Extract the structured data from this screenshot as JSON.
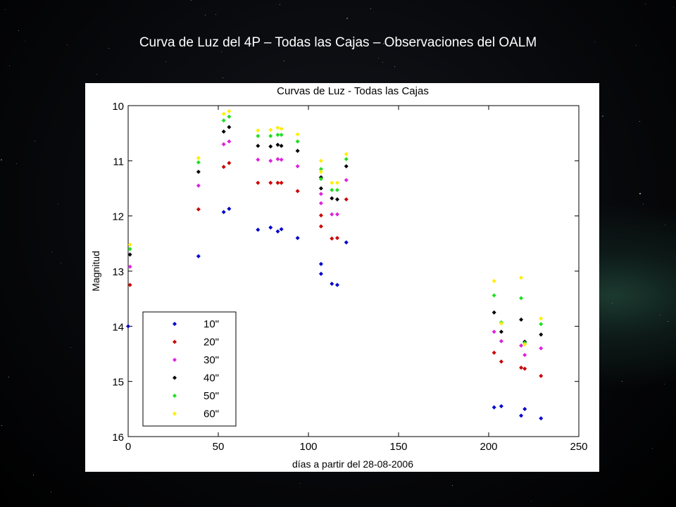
{
  "slide": {
    "title": "Curva de Luz del 4P – Todas las Cajas – Observaciones del OALM"
  },
  "chart_data": {
    "type": "scatter",
    "title": "Curvas de Luz - Todas las Cajas",
    "xlabel": "días a partir del 28-08-2006",
    "ylabel": "Magnitud",
    "xlim": [
      0,
      250
    ],
    "ylim": [
      10,
      16
    ],
    "y_reversed": true,
    "x_ticks": [
      0,
      50,
      100,
      150,
      200,
      250
    ],
    "y_ticks": [
      10,
      11,
      12,
      13,
      14,
      15,
      16
    ],
    "grid": false,
    "legend_position": "bottom-left",
    "marker": "diamond",
    "series": [
      {
        "name": "10\"",
        "color": "#0000cc",
        "points": [
          [
            0,
            14.0
          ],
          [
            39,
            12.73
          ],
          [
            53,
            11.93
          ],
          [
            56,
            11.87
          ],
          [
            72,
            12.25
          ],
          [
            79,
            12.21
          ],
          [
            83,
            12.28
          ],
          [
            85,
            12.24
          ],
          [
            94,
            12.4
          ],
          [
            107,
            12.87
          ],
          [
            107,
            13.05
          ],
          [
            113,
            13.23
          ],
          [
            116,
            13.25
          ],
          [
            121,
            12.48
          ],
          [
            203,
            15.47
          ],
          [
            207,
            15.45
          ],
          [
            218,
            15.62
          ],
          [
            220,
            15.5
          ],
          [
            229,
            15.67
          ]
        ]
      },
      {
        "name": "20\"",
        "color": "#cc0000",
        "points": [
          [
            1,
            13.25
          ],
          [
            39,
            11.88
          ],
          [
            53,
            11.11
          ],
          [
            56,
            11.04
          ],
          [
            72,
            11.4
          ],
          [
            79,
            11.4
          ],
          [
            83,
            11.4
          ],
          [
            85,
            11.4
          ],
          [
            94,
            11.55
          ],
          [
            107,
            11.99
          ],
          [
            107,
            12.19
          ],
          [
            113,
            12.41
          ],
          [
            116,
            12.4
          ],
          [
            121,
            11.7
          ],
          [
            203,
            14.48
          ],
          [
            207,
            14.64
          ],
          [
            218,
            14.75
          ],
          [
            220,
            14.77
          ],
          [
            229,
            14.9
          ]
        ]
      },
      {
        "name": "30\"",
        "color": "#dd22dd",
        "points": [
          [
            1,
            12.92
          ],
          [
            39,
            11.45
          ],
          [
            53,
            10.7
          ],
          [
            56,
            10.65
          ],
          [
            72,
            10.98
          ],
          [
            79,
            11.0
          ],
          [
            83,
            10.97
          ],
          [
            85,
            10.98
          ],
          [
            94,
            11.1
          ],
          [
            107,
            11.6
          ],
          [
            107,
            11.77
          ],
          [
            113,
            11.97
          ],
          [
            116,
            11.97
          ],
          [
            121,
            11.35
          ],
          [
            203,
            14.1
          ],
          [
            207,
            14.27
          ],
          [
            218,
            14.35
          ],
          [
            220,
            14.52
          ],
          [
            229,
            14.4
          ]
        ]
      },
      {
        "name": "40\"",
        "color": "#000000",
        "points": [
          [
            1,
            12.7
          ],
          [
            39,
            11.2
          ],
          [
            53,
            10.47
          ],
          [
            56,
            10.39
          ],
          [
            72,
            10.73
          ],
          [
            79,
            10.74
          ],
          [
            83,
            10.71
          ],
          [
            85,
            10.73
          ],
          [
            94,
            10.82
          ],
          [
            107,
            11.3
          ],
          [
            107,
            11.5
          ],
          [
            113,
            11.68
          ],
          [
            116,
            11.7
          ],
          [
            121,
            11.1
          ],
          [
            203,
            13.75
          ],
          [
            207,
            14.1
          ],
          [
            218,
            13.88
          ],
          [
            220,
            14.28
          ],
          [
            229,
            14.15
          ]
        ]
      },
      {
        "name": "50\"",
        "color": "#22dd22",
        "points": [
          [
            1,
            12.6
          ],
          [
            39,
            11.03
          ],
          [
            53,
            10.27
          ],
          [
            56,
            10.2
          ],
          [
            72,
            10.55
          ],
          [
            79,
            10.55
          ],
          [
            83,
            10.53
          ],
          [
            85,
            10.53
          ],
          [
            94,
            10.65
          ],
          [
            107,
            11.15
          ],
          [
            107,
            11.33
          ],
          [
            113,
            11.53
          ],
          [
            116,
            11.53
          ],
          [
            121,
            10.97
          ],
          [
            203,
            13.44
          ],
          [
            207,
            13.93
          ],
          [
            218,
            13.49
          ],
          [
            220,
            14.3
          ],
          [
            229,
            13.96
          ]
        ]
      },
      {
        "name": "60\"",
        "color": "#ffee00",
        "points": [
          [
            1,
            12.52
          ],
          [
            39,
            10.95
          ],
          [
            53,
            10.15
          ],
          [
            56,
            10.1
          ],
          [
            72,
            10.45
          ],
          [
            79,
            10.44
          ],
          [
            83,
            10.4
          ],
          [
            85,
            10.42
          ],
          [
            94,
            10.52
          ],
          [
            107,
            11.0
          ],
          [
            107,
            11.2
          ],
          [
            113,
            11.4
          ],
          [
            116,
            11.4
          ],
          [
            121,
            10.88
          ],
          [
            203,
            13.18
          ],
          [
            207,
            13.95
          ],
          [
            218,
            13.12
          ],
          [
            220,
            14.33
          ],
          [
            229,
            13.86
          ]
        ]
      }
    ]
  }
}
